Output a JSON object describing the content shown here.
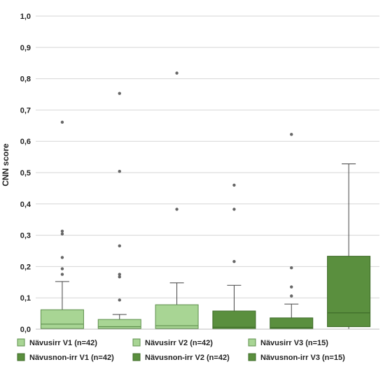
{
  "chart_data": {
    "type": "box",
    "title": "",
    "xlabel": "",
    "ylabel": "CNN score",
    "ylim": [
      0,
      1
    ],
    "yticks": [
      "0,0",
      "0,1",
      "0,2",
      "0,3",
      "0,4",
      "0,5",
      "0,6",
      "0,7",
      "0,8",
      "0,9",
      "1,0"
    ],
    "grid": true,
    "legend_position": "bottom",
    "colors": {
      "light_fill": "#a8d594",
      "light_stroke": "#5e8f4c",
      "dark_fill": "#5a8f3e",
      "dark_stroke": "#3c6a27",
      "outlier": "#666666",
      "grid": "#d6d6d6"
    },
    "series": [
      {
        "name": "Nävusirr V1 (n=42)",
        "shade": "light",
        "whisker_low": 0.0,
        "q1": 0.002,
        "median": 0.016,
        "q3": 0.062,
        "whisker_high": 0.152,
        "outliers": [
          0.175,
          0.193,
          0.229,
          0.304,
          0.313,
          0.661
        ]
      },
      {
        "name": "Nävusirr V2 (n=42)",
        "shade": "light",
        "whisker_low": 0.0,
        "q1": 0.002,
        "median": 0.008,
        "q3": 0.031,
        "whisker_high": 0.047,
        "outliers": [
          0.093,
          0.167,
          0.175,
          0.266,
          0.504,
          0.753
        ]
      },
      {
        "name": "Nävusirr V3 (n=15)",
        "shade": "light",
        "whisker_low": 0.0,
        "q1": 0.002,
        "median": 0.011,
        "q3": 0.078,
        "whisker_high": 0.148,
        "outliers": [
          0.383,
          0.818
        ]
      },
      {
        "name": "Nävusnon-irr V1 (n=42)",
        "shade": "dark",
        "whisker_low": 0.0,
        "q1": 0.001,
        "median": 0.006,
        "q3": 0.058,
        "whisker_high": 0.14,
        "outliers": [
          0.216,
          0.383,
          0.46
        ]
      },
      {
        "name": "Nävusnon-irr V2 (n=42)",
        "shade": "dark",
        "whisker_low": 0.0,
        "q1": 0.001,
        "median": 0.005,
        "q3": 0.036,
        "whisker_high": 0.08,
        "outliers": [
          0.106,
          0.135,
          0.196,
          0.622
        ]
      },
      {
        "name": "Nävusnon-irr V3 (n=15)",
        "shade": "dark",
        "whisker_low": 0.0,
        "q1": 0.008,
        "median": 0.052,
        "q3": 0.233,
        "whisker_high": 0.528,
        "outliers": []
      }
    ]
  }
}
